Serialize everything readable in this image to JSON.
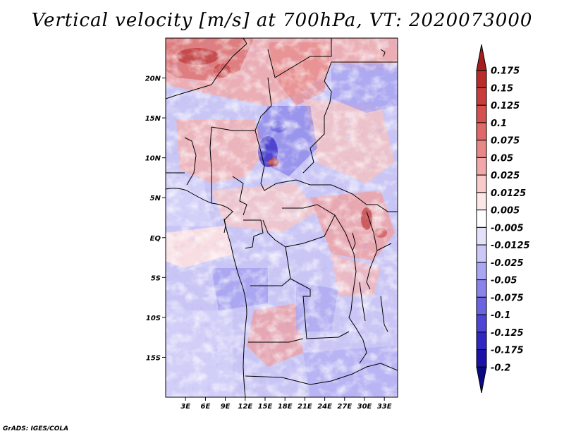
{
  "title": "Vertical velocity [m/s] at 700hPa, VT: 2020073000",
  "footer": "GrADS: IGES/COLA",
  "map": {
    "lon_range": [
      0,
      35
    ],
    "lat_range": [
      -20,
      25
    ],
    "y_ticks": [
      "20N",
      "15N",
      "10N",
      "5N",
      "EQ",
      "5S",
      "10S",
      "15S"
    ],
    "y_tick_values": [
      20,
      15,
      10,
      5,
      0,
      -5,
      -10,
      -15
    ],
    "x_ticks": [
      "3E",
      "6E",
      "9E",
      "12E",
      "15E",
      "18E",
      "21E",
      "24E",
      "27E",
      "30E",
      "33E"
    ],
    "x_tick_values": [
      3,
      6,
      9,
      12,
      15,
      18,
      21,
      24,
      27,
      30,
      33
    ]
  },
  "colorbar": {
    "labels": [
      "0.175",
      "0.15",
      "0.125",
      "0.1",
      "0.075",
      "0.05",
      "0.025",
      "0.0125",
      "0.005",
      "-0.005",
      "-0.0125",
      "-0.025",
      "-0.05",
      "-0.075",
      "-0.1",
      "-0.125",
      "-0.175",
      "-0.2"
    ],
    "colors": [
      "#a51e1e",
      "#b92a2a",
      "#c83c3c",
      "#d65050",
      "#e06868",
      "#e98686",
      "#f2a8a8",
      "#f8caca",
      "#fde6e6",
      "#ffffff",
      "#e4e2fb",
      "#cbc8f7",
      "#aaa6f1",
      "#8a84ea",
      "#6b64e1",
      "#4d45d6",
      "#3128c4",
      "#1b12a8",
      "#0c0a80"
    ]
  }
}
